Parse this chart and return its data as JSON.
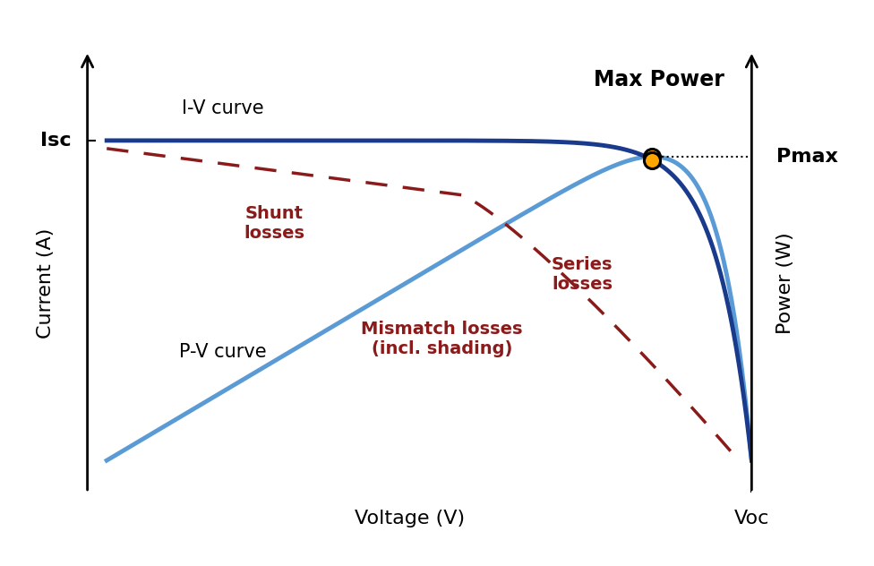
{
  "xlabel": "Voltage (V)",
  "ylabel": "Current (A)",
  "ylabel_right": "Power (W)",
  "isc_label": "Isc",
  "voc_label": "Voc",
  "pmax_label": "Pmax",
  "max_power_label": "Max Power",
  "iv_curve_label": "I-V curve",
  "pv_curve_label": "P-V curve",
  "shunt_label": "Shunt\nlosses",
  "series_label": "Series\nlosses",
  "mismatch_label": "Mismatch losses\n(incl. shading)",
  "iv_color": "#1a3a8c",
  "pv_color": "#5b9bd5",
  "loss_color": "#8B1A1A",
  "point_color": "#FFA500",
  "background_color": "#ffffff",
  "figsize": [
    9.76,
    6.32
  ],
  "dpi": 100
}
